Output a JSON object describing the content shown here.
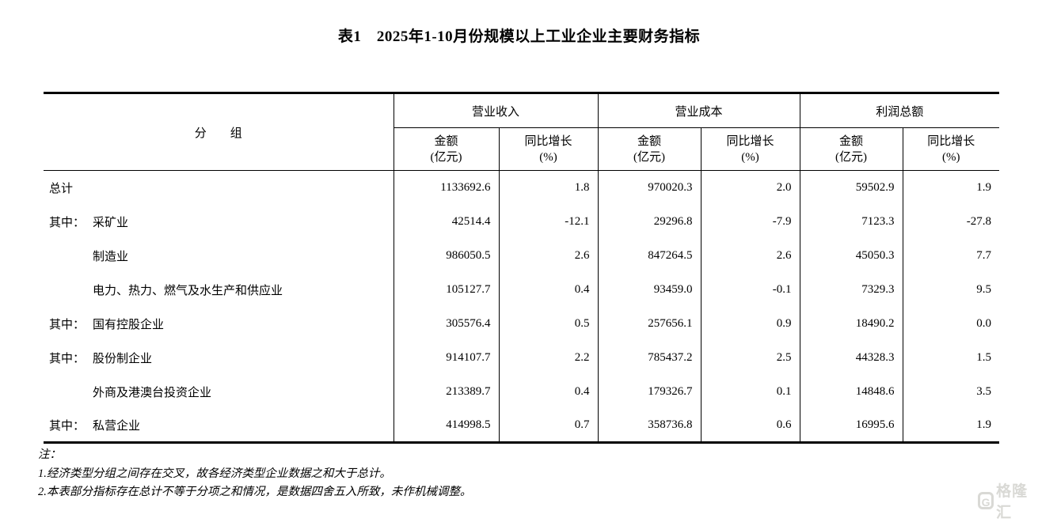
{
  "page": {
    "title": "表1　2025年1-10月份规模以上工业企业主要财务指标"
  },
  "table": {
    "group_header": "分　　组",
    "col_groups": [
      {
        "label": "营业收入"
      },
      {
        "label": "营业成本"
      },
      {
        "label": "利润总额"
      }
    ],
    "sub_headers": {
      "amount_line1": "金额",
      "amount_line2": "(亿元)",
      "growth_line1": "同比增长",
      "growth_line2": "(%)"
    },
    "rows": [
      {
        "prefix": "",
        "indent": false,
        "label": "总计",
        "values": [
          "1133692.6",
          "1.8",
          "970020.3",
          "2.0",
          "59502.9",
          "1.9"
        ]
      },
      {
        "prefix": "其中：",
        "indent": true,
        "label": "采矿业",
        "values": [
          "42514.4",
          "-12.1",
          "29296.8",
          "-7.9",
          "7123.3",
          "-27.8"
        ]
      },
      {
        "prefix": "",
        "indent": true,
        "label": "制造业",
        "values": [
          "986050.5",
          "2.6",
          "847264.5",
          "2.6",
          "45050.3",
          "7.7"
        ]
      },
      {
        "prefix": "",
        "indent": true,
        "label": "电力、热力、燃气及水生产和供应业",
        "values": [
          "105127.7",
          "0.4",
          "93459.0",
          "-0.1",
          "7329.3",
          "9.5"
        ]
      },
      {
        "prefix": "其中：",
        "indent": true,
        "label": "国有控股企业",
        "values": [
          "305576.4",
          "0.5",
          "257656.1",
          "0.9",
          "18490.2",
          "0.0"
        ]
      },
      {
        "prefix": "其中：",
        "indent": true,
        "label": "股份制企业",
        "values": [
          "914107.7",
          "2.2",
          "785437.2",
          "2.5",
          "44328.3",
          "1.5"
        ]
      },
      {
        "prefix": "",
        "indent": true,
        "label": "外商及港澳台投资企业",
        "values": [
          "213389.7",
          "0.4",
          "179326.7",
          "0.1",
          "14848.6",
          "3.5"
        ]
      },
      {
        "prefix": "其中：",
        "indent": true,
        "label": "私营企业",
        "values": [
          "414998.5",
          "0.7",
          "358736.8",
          "0.6",
          "16995.6",
          "1.9"
        ]
      }
    ]
  },
  "notes": {
    "heading": "注：",
    "items": [
      "1.经济类型分组之间存在交叉，故各经济类型企业数据之和大于总计。",
      "2.本表部分指标存在总计不等于分项之和情况，是数据四舍五入所致，未作机械调整。"
    ]
  },
  "watermark": {
    "logo": "G",
    "text": "格隆汇",
    "color": "#d9d9d5"
  }
}
